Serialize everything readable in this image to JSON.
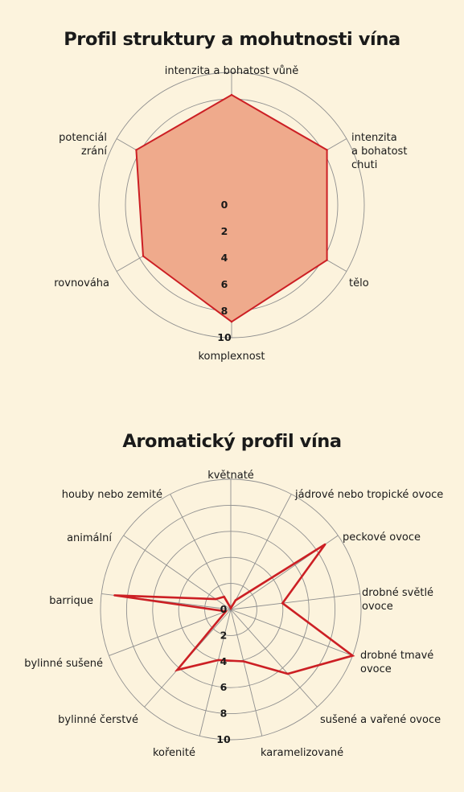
{
  "colors": {
    "background": "#fcf3dd",
    "grid": "#8f8f8f",
    "series_line": "#cc1f24",
    "series_fill": "#efaa8c"
  },
  "chart_data": [
    {
      "type": "radar",
      "title": "Profil struktury a mohutnosti vína",
      "categories": [
        [
          "intenzita a bohatost vůně"
        ],
        [
          "intenzita",
          "a bohatost",
          "chuti"
        ],
        [
          "tělo"
        ],
        [
          "komplexnost"
        ],
        [
          "rovnováha"
        ],
        [
          "potenciál",
          "zrání"
        ]
      ],
      "values": [
        8.3,
        8.3,
        8.3,
        8.8,
        7.7,
        8.3
      ],
      "rlim": [
        0,
        10
      ],
      "ticks": [
        "0",
        "2",
        "4",
        "6",
        "8",
        "10"
      ],
      "filled": true,
      "grid": true
    },
    {
      "type": "radar",
      "title": "Aromatický profil vína",
      "categories": [
        [
          "květnaté"
        ],
        [
          "jádrové nebo tropické ovoce"
        ],
        [
          "peckové ovoce"
        ],
        [
          "drobné světlé",
          "ovoce"
        ],
        [
          "drobné tmavé",
          "ovoce"
        ],
        [
          "sušené a vařené ovoce"
        ],
        [
          "karamelizované"
        ],
        [
          "kořenité"
        ],
        [
          "bylinné čerstvé"
        ],
        [
          "bylinné sušené"
        ],
        [
          "barrique"
        ],
        [
          "animální"
        ],
        [
          "houby nebo zemité"
        ]
      ],
      "values": [
        0.1,
        0.8,
        8.8,
        4.0,
        10.0,
        6.6,
        4.1,
        4.0,
        6.2,
        0.4,
        9.0,
        1.4,
        1.1
      ],
      "rlim": [
        0,
        10
      ],
      "ticks": [
        "0",
        "2",
        "4",
        "6",
        "8",
        "10"
      ],
      "filled": false,
      "grid": true
    }
  ]
}
